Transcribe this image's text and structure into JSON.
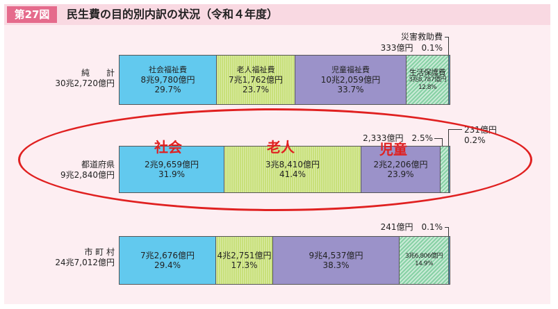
{
  "figure": {
    "number": "第27図",
    "title": "民生費の目的別内訳の状況（令和４年度）"
  },
  "colors": {
    "social": "#62c9ee",
    "elderly": "#c8e07a",
    "child": "#9b92c9",
    "livelihood": "#87d1a5",
    "disaster": "#4f9bc6",
    "highlight": "#e02020"
  },
  "chart_data": {
    "type": "bar",
    "orientation": "horizontal-stacked-100%",
    "categories": [
      "社会福祉費",
      "老人福祉費",
      "児童福祉費",
      "生活保護費",
      "災害救助費"
    ],
    "rows": [
      {
        "label": "純　　計",
        "total": "30兆2,720億円",
        "values": [
          "8兆9,780億円",
          "7兆1,762億円",
          "10兆2,059億円",
          "3兆8,787億円",
          "333億円"
        ],
        "percents": [
          29.7,
          23.7,
          33.7,
          12.8,
          0.1
        ],
        "percent_labels": [
          "29.7%",
          "23.7%",
          "33.7%",
          "12.8%",
          "0.1%"
        ]
      },
      {
        "label": "都道府県",
        "total": "9兆2,840億円",
        "values": [
          "2兆9,659億円",
          "3兆8,410億円",
          "2兆2,206億円",
          "2,333億円",
          "231億円"
        ],
        "percents": [
          31.9,
          41.4,
          23.9,
          2.5,
          0.2
        ],
        "percent_labels": [
          "31.9%",
          "41.4%",
          "23.9%",
          "2.5%",
          "0.2%"
        ]
      },
      {
        "label": "市 町 村",
        "total": "24兆7,012億円",
        "values": [
          "7兆2,676億円",
          "4兆2,751億円",
          "9兆4,537億円",
          "3兆6,806億円",
          "241億円"
        ],
        "percents": [
          29.4,
          17.3,
          38.3,
          14.9,
          0.1
        ],
        "percent_labels": [
          "29.4%",
          "17.3%",
          "38.3%",
          "14.9%",
          "0.1%"
        ]
      }
    ]
  },
  "callouts": {
    "top_name": "災害救助費",
    "top_value": "333億円　0.1%",
    "mid_left": "2,333億円　2.5%",
    "mid_right_value": "231億円",
    "mid_right_percent": "0.2%",
    "bottom": "241億円　0.1%"
  },
  "annotations": {
    "social": "社会",
    "elderly": "老人",
    "child": "児童"
  }
}
